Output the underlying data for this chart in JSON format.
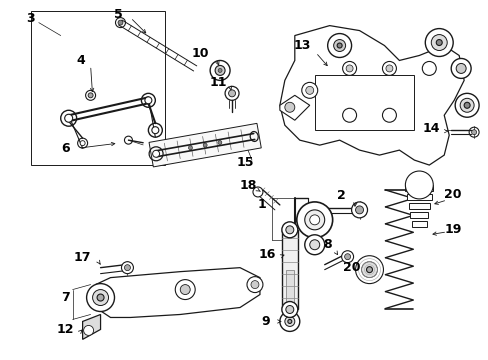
{
  "bg_color": "#ffffff",
  "line_color": "#1a1a1a",
  "label_color": "#000000",
  "fig_width": 4.89,
  "fig_height": 3.6,
  "dpi": 100
}
